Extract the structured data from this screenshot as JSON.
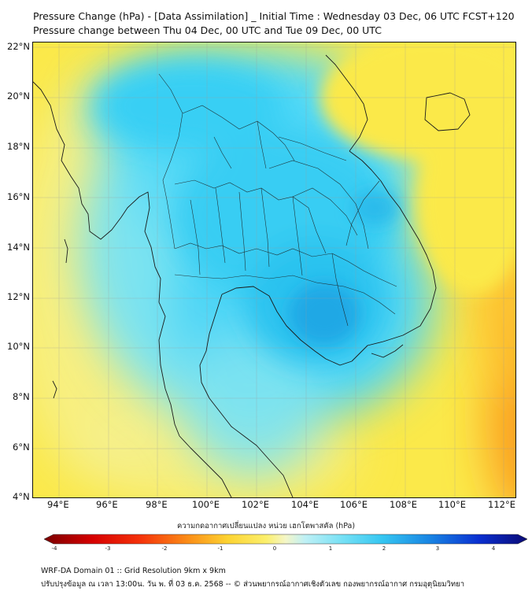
{
  "title": {
    "line1": "Pressure Change (hPa) - [Data Assimilation] _ Initial Time : Wednesday 03 Dec, 06 UTC FCST+120",
    "line2": "Pressure change between Thu 04 Dec, 00 UTC and Tue 09 Dec, 00 UTC"
  },
  "map": {
    "lat_labels": [
      "22°N",
      "20°N",
      "18°N",
      "16°N",
      "14°N",
      "12°N",
      "10°N",
      "8°N",
      "6°N",
      "4°N"
    ],
    "lon_labels": [
      "94°E",
      "96°E",
      "98°E",
      "100°E",
      "102°E",
      "104°E",
      "106°E",
      "108°E",
      "110°E",
      "112°E"
    ],
    "extent": {
      "lon_min": 93,
      "lon_max": 112.5,
      "lat_min": 4,
      "lat_max": 22
    },
    "colors": {
      "ocean_yellow": "#fbe94a",
      "cyan": "#3fd7f4",
      "deep_blue": "#22aee8",
      "orange": "#fc9a1a",
      "borders": "#1a1a1a"
    }
  },
  "colorbar": {
    "title": "ความกดอากาศเปลี่ยนแปลง หน่วย เฮกโตพาสคัล (hPa)",
    "ticks": [
      "-4",
      "-3",
      "-2",
      "-1",
      "0",
      "1",
      "2",
      "3",
      "4"
    ],
    "range": [
      -4,
      4
    ]
  },
  "footer": {
    "line1": "WRF-DA Domain 01 :: Grid Resolution 9km x 9km",
    "line2": "ปรับปรุงข้อมูล ณ เวลา 13:00น. วัน พ. ที่ 03 ธ.ค. 2568 -- © ส่วนพยากรณ์อากาศเชิงตัวเลข กองพยากรณ์อากาศ กรมอุตุนิยมวิทยา"
  }
}
